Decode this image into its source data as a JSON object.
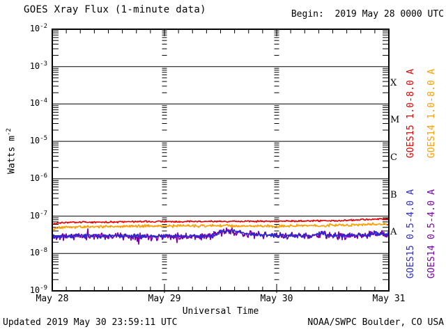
{
  "title": "GOES Xray Flux (1-minute data)",
  "begin_label": "Begin:  2019 May 28 0000 UTC",
  "updated_label": "Updated 2019 May 30 23:59:11 UTC",
  "credit_label": "NOAA/SWPC Boulder, CO USA",
  "chart_data": {
    "type": "line",
    "title": "GOES Xray Flux (1-minute data)",
    "xlabel": "Universal Time",
    "ylabel": "Watts m^-2",
    "ylabel_display": {
      "base": "Watts m",
      "exp": "-2"
    },
    "x_tick_labels": [
      "May 28",
      "May 29",
      "May 30",
      "May 31"
    ],
    "x_tick_days": [
      0,
      1,
      2,
      3
    ],
    "y_tick_exponents": [
      -2,
      -3,
      -4,
      -5,
      -6,
      -7,
      -8,
      -9
    ],
    "ylim": [
      1e-09,
      0.01
    ],
    "xlim_days": [
      0,
      3
    ],
    "grid": "solid horizontal decade lines; log minor-tick columns at interior day boundaries; 3-hour minor ticks on top and bottom axes",
    "legend_position": "right, rotated 90deg, two columns x two blocks",
    "flare_class_labels": [
      {
        "label": "X",
        "midpoint_exponent": -3.5
      },
      {
        "label": "M",
        "midpoint_exponent": -4.5
      },
      {
        "label": "C",
        "midpoint_exponent": -5.5
      },
      {
        "label": "B",
        "midpoint_exponent": -6.5
      },
      {
        "label": "A",
        "midpoint_exponent": -7.5
      }
    ],
    "series": [
      {
        "name": "GOES14 0.5-4.0 A",
        "color": "#7a00a8",
        "noise_log": 0.115,
        "spiky": true,
        "seed": 11,
        "points_day_flux": [
          [
            0,
            2.8e-08
          ],
          [
            0.3,
            2.9e-08
          ],
          [
            0.7,
            2.85e-08
          ],
          [
            1.0,
            2.9e-08
          ],
          [
            1.3,
            2.85e-08
          ],
          [
            1.42,
            2.9e-08
          ],
          [
            1.5,
            3.6e-08
          ],
          [
            1.57,
            3.95e-08
          ],
          [
            1.63,
            3.75e-08
          ],
          [
            1.72,
            3.35e-08
          ],
          [
            1.85,
            3.1e-08
          ],
          [
            2.0,
            2.95e-08
          ],
          [
            2.2,
            2.95e-08
          ],
          [
            2.36,
            3.05e-08
          ],
          [
            2.4,
            3.45e-08
          ],
          [
            2.44,
            3.05e-08
          ],
          [
            2.6,
            2.95e-08
          ],
          [
            2.8,
            3.05e-08
          ],
          [
            2.88,
            3.4e-08
          ],
          [
            2.94,
            3.2e-08
          ],
          [
            3,
            3.25e-08
          ]
        ]
      },
      {
        "name": "GOES15 0.5-4.0 A",
        "color": "#2a2ad0",
        "noise_log": 0.062,
        "spiky": false,
        "seed": 7,
        "points_day_flux": [
          [
            0,
            2.85e-08
          ],
          [
            0.3,
            2.95e-08
          ],
          [
            0.7,
            2.9e-08
          ],
          [
            1.0,
            2.95e-08
          ],
          [
            1.3,
            2.9e-08
          ],
          [
            1.42,
            2.95e-08
          ],
          [
            1.5,
            3.7e-08
          ],
          [
            1.57,
            4e-08
          ],
          [
            1.63,
            3.8e-08
          ],
          [
            1.72,
            3.4e-08
          ],
          [
            1.85,
            3.15e-08
          ],
          [
            2.0,
            3e-08
          ],
          [
            2.2,
            3e-08
          ],
          [
            2.36,
            3.1e-08
          ],
          [
            2.4,
            3.55e-08
          ],
          [
            2.44,
            3.1e-08
          ],
          [
            2.6,
            3e-08
          ],
          [
            2.8,
            3.1e-08
          ],
          [
            2.88,
            3.45e-08
          ],
          [
            2.94,
            3.25e-08
          ],
          [
            3,
            3.3e-08
          ]
        ]
      },
      {
        "name": "GOES14 1.0-8.0 A",
        "color": "#ff9c00",
        "noise_log": 0.045,
        "spiky": false,
        "seed": 5,
        "points_day_flux": [
          [
            0,
            4.3e-08
          ],
          [
            0.06,
            5e-08
          ],
          [
            0.3,
            5.2e-08
          ],
          [
            0.7,
            5.4e-08
          ],
          [
            1.1,
            5.5e-08
          ],
          [
            1.6,
            5.5e-08
          ],
          [
            2.0,
            5.4e-08
          ],
          [
            2.4,
            5.6e-08
          ],
          [
            2.7,
            5.9e-08
          ],
          [
            2.9,
            6.2e-08
          ],
          [
            3,
            6e-08
          ]
        ]
      },
      {
        "name": "GOES15 1.0-8.0 A",
        "color": "#e30000",
        "noise_log": 0.027,
        "spiky": false,
        "seed": 3,
        "points_day_flux": [
          [
            0,
            6.2e-08
          ],
          [
            0.1,
            6.7e-08
          ],
          [
            0.4,
            6.9e-08
          ],
          [
            0.8,
            7.1e-08
          ],
          [
            1.2,
            7.2e-08
          ],
          [
            1.6,
            7.2e-08
          ],
          [
            2.0,
            7.3e-08
          ],
          [
            2.3,
            7.4e-08
          ],
          [
            2.6,
            7.7e-08
          ],
          [
            2.85,
            8.2e-08
          ],
          [
            2.95,
            8.4e-08
          ],
          [
            3,
            8.2e-08
          ]
        ]
      }
    ],
    "legend": [
      {
        "text": "GOES15 1.0-8.0 A",
        "color": "#e30000",
        "column": 0,
        "block": "top"
      },
      {
        "text": "GOES14 1.0-8.0 A",
        "color": "#ff9c00",
        "column": 1,
        "block": "top"
      },
      {
        "text": "GOES15 0.5-4.0 A",
        "color": "#2a2ad0",
        "column": 0,
        "block": "bottom"
      },
      {
        "text": "GOES14 0.5-4.0 A",
        "color": "#7a00a8",
        "column": 1,
        "block": "bottom"
      }
    ]
  }
}
